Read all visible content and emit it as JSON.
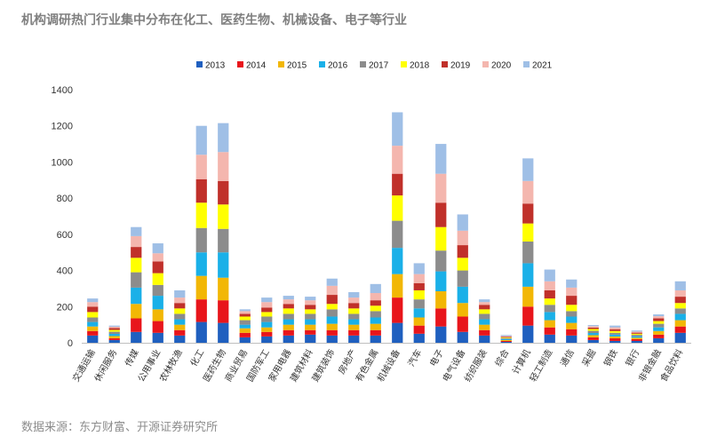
{
  "page": {
    "title": "机构调研热门行业集中分布在化工、医药生物、机械设备、电子等行业",
    "source": "数据来源：东方财富、开源证券研究所"
  },
  "chart_data": {
    "type": "bar",
    "stacked": true,
    "ylim": [
      0,
      1400
    ],
    "yticks": [
      0,
      200,
      400,
      600,
      800,
      1000,
      1200,
      1400
    ],
    "grid": false,
    "legend_position": "top",
    "categories": [
      "交通运输",
      "休闲服务",
      "传媒",
      "公用事业",
      "农林牧渔",
      "化工",
      "医药生物",
      "商业贸易",
      "国防军工",
      "家用电器",
      "建筑材料",
      "建筑装饰",
      "房地产",
      "有色金属",
      "机械设备",
      "汽车",
      "电子",
      "电气设备",
      "纺织服装",
      "综合",
      "计算机",
      "轻工制造",
      "通信",
      "采掘",
      "钢铁",
      "银行",
      "非银金融",
      "食品饮料"
    ],
    "series": [
      {
        "name": "2013",
        "color": "#1f5fbf",
        "values": [
          40,
          15,
          60,
          55,
          40,
          115,
          110,
          30,
          35,
          40,
          45,
          40,
          40,
          40,
          110,
          50,
          90,
          60,
          40,
          5,
          95,
          45,
          40,
          15,
          10,
          10,
          25,
          55
        ]
      },
      {
        "name": "2014",
        "color": "#e8151b",
        "values": [
          25,
          10,
          75,
          65,
          30,
          125,
          125,
          25,
          25,
          30,
          25,
          30,
          30,
          30,
          140,
          45,
          100,
          85,
          30,
          5,
          105,
          40,
          35,
          15,
          15,
          10,
          20,
          35
        ]
      },
      {
        "name": "2015",
        "color": "#f2b705",
        "values": [
          25,
          12,
          80,
          65,
          30,
          130,
          125,
          25,
          25,
          30,
          30,
          35,
          30,
          35,
          130,
          45,
          95,
          75,
          30,
          5,
          110,
          40,
          35,
          12,
          10,
          8,
          20,
          35
        ]
      },
      {
        "name": "2016",
        "color": "#1ab0e8",
        "values": [
          25,
          12,
          90,
          75,
          30,
          130,
          140,
          20,
          30,
          30,
          30,
          40,
          30,
          35,
          145,
          50,
          110,
          90,
          30,
          5,
          130,
          45,
          35,
          12,
          10,
          8,
          20,
          35
        ]
      },
      {
        "name": "2017",
        "color": "#8c8c8c",
        "values": [
          25,
          12,
          85,
          60,
          30,
          135,
          130,
          25,
          30,
          30,
          30,
          40,
          30,
          35,
          150,
          50,
          115,
          90,
          30,
          6,
          120,
          40,
          30,
          12,
          10,
          8,
          20,
          30
        ]
      },
      {
        "name": "2018",
        "color": "#ffff00",
        "values": [
          30,
          10,
          80,
          65,
          30,
          140,
          135,
          20,
          25,
          30,
          25,
          30,
          30,
          30,
          140,
          50,
          130,
          70,
          25,
          4,
          100,
          35,
          35,
          10,
          10,
          6,
          15,
          30
        ]
      },
      {
        "name": "2019",
        "color": "#c0302a",
        "values": [
          30,
          10,
          60,
          65,
          30,
          130,
          130,
          15,
          25,
          25,
          25,
          50,
          30,
          30,
          120,
          40,
          135,
          70,
          25,
          4,
          110,
          45,
          50,
          8,
          10,
          6,
          15,
          35
        ]
      },
      {
        "name": "2020",
        "color": "#f4b6ae",
        "values": [
          25,
          8,
          60,
          45,
          30,
          135,
          160,
          15,
          30,
          25,
          25,
          50,
          30,
          40,
          155,
          50,
          160,
          80,
          15,
          4,
          125,
          50,
          45,
          8,
          10,
          6,
          12,
          35
        ]
      },
      {
        "name": "2021",
        "color": "#9fbfe6",
        "values": [
          20,
          6,
          50,
          55,
          40,
          160,
          160,
          10,
          25,
          20,
          20,
          40,
          30,
          50,
          185,
          60,
          165,
          90,
          15,
          5,
          125,
          65,
          45,
          6,
          10,
          6,
          10,
          50
        ]
      }
    ]
  }
}
